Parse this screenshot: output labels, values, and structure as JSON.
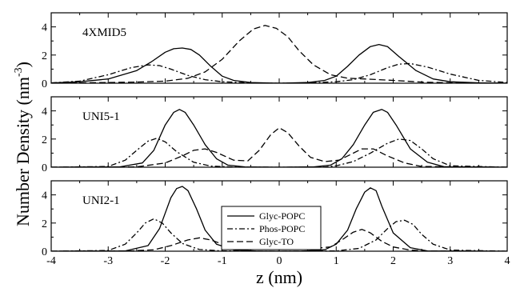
{
  "chart_data": {
    "type": "line",
    "xlabel": "z (nm)",
    "ylabel": "Number Density (nm",
    "ylabel_sup": "-3",
    "ylabel_close": ")",
    "xlim": [
      -4,
      4
    ],
    "ylim": [
      0,
      5
    ],
    "xticks": [
      -4,
      -3,
      -2,
      -1,
      0,
      1,
      2,
      3,
      4
    ],
    "yticks": [
      0,
      2,
      4
    ],
    "legend": {
      "placement": "inside bottom panel, center",
      "entries": [
        {
          "name": "Glyc-POPC",
          "style": "solid"
        },
        {
          "name": "Phos-POPC",
          "style": "dashdot"
        },
        {
          "name": "Glyc-TO",
          "style": "dashed"
        }
      ]
    },
    "panels": [
      {
        "label": "4XMID5",
        "series": [
          {
            "name": "Glyc-POPC",
            "style": "solid",
            "x": [
              -4.0,
              -3.5,
              -3.0,
              -2.5,
              -2.25,
              -2.0,
              -1.85,
              -1.7,
              -1.55,
              -1.4,
              -1.2,
              -1.0,
              -0.8,
              -0.5,
              0.0,
              0.5,
              0.8,
              1.0,
              1.2,
              1.4,
              1.6,
              1.75,
              1.9,
              2.1,
              2.4,
              2.7,
              3.0,
              3.5,
              4.0
            ],
            "y": [
              0.02,
              0.1,
              0.3,
              0.9,
              1.5,
              2.2,
              2.45,
              2.5,
              2.4,
              2.0,
              1.2,
              0.5,
              0.2,
              0.05,
              0.0,
              0.05,
              0.2,
              0.5,
              1.2,
              2.0,
              2.6,
              2.75,
              2.6,
              1.9,
              0.9,
              0.3,
              0.1,
              0.03,
              0.0
            ]
          },
          {
            "name": "Phos-POPC",
            "style": "dashdot",
            "x": [
              -4.0,
              -3.5,
              -3.0,
              -2.6,
              -2.3,
              -2.1,
              -1.9,
              -1.6,
              -1.3,
              -1.0,
              -0.5,
              0.0,
              0.5,
              1.0,
              1.3,
              1.6,
              1.9,
              2.1,
              2.3,
              2.6,
              3.0,
              3.5,
              4.0
            ],
            "y": [
              0.02,
              0.15,
              0.6,
              1.1,
              1.3,
              1.25,
              1.0,
              0.55,
              0.25,
              0.1,
              0.02,
              0.0,
              0.02,
              0.1,
              0.25,
              0.6,
              1.1,
              1.35,
              1.4,
              1.15,
              0.65,
              0.2,
              0.05
            ]
          },
          {
            "name": "Glyc-TO",
            "style": "dashed",
            "x": [
              -4.0,
              -3.5,
              -3.0,
              -2.5,
              -2.0,
              -1.6,
              -1.3,
              -1.0,
              -0.7,
              -0.45,
              -0.25,
              -0.05,
              0.15,
              0.35,
              0.6,
              0.9,
              1.2,
              1.5,
              2.0,
              2.5,
              3.0,
              4.0
            ],
            "y": [
              0.0,
              0.02,
              0.05,
              0.08,
              0.15,
              0.35,
              0.8,
              1.7,
              3.0,
              3.85,
              4.1,
              3.9,
              3.3,
              2.3,
              1.3,
              0.6,
              0.35,
              0.3,
              0.2,
              0.08,
              0.03,
              0.0
            ]
          }
        ]
      },
      {
        "label": "UNI5-1",
        "series": [
          {
            "name": "Glyc-POPC",
            "style": "solid",
            "x": [
              -4.0,
              -2.8,
              -2.4,
              -2.2,
              -2.0,
              -1.85,
              -1.75,
              -1.65,
              -1.5,
              -1.3,
              -1.1,
              -0.9,
              -0.6,
              0.0,
              0.6,
              0.9,
              1.1,
              1.3,
              1.5,
              1.65,
              1.8,
              1.9,
              2.05,
              2.3,
              2.6,
              2.9,
              4.0
            ],
            "y": [
              0.0,
              0.02,
              0.3,
              1.2,
              3.0,
              3.9,
              4.1,
              3.9,
              3.0,
              1.6,
              0.6,
              0.15,
              0.02,
              0.0,
              0.02,
              0.15,
              0.6,
              1.6,
              3.0,
              3.9,
              4.1,
              3.9,
              3.0,
              1.3,
              0.35,
              0.03,
              0.0
            ]
          },
          {
            "name": "Phos-POPC",
            "style": "dashdot",
            "x": [
              -4.0,
              -3.0,
              -2.7,
              -2.5,
              -2.3,
              -2.15,
              -2.0,
              -1.8,
              -1.5,
              -1.2,
              -0.8,
              0.0,
              0.8,
              1.0,
              1.3,
              1.6,
              1.9,
              2.1,
              2.3,
              2.5,
              2.7,
              3.0,
              4.0
            ],
            "y": [
              0.0,
              0.05,
              0.5,
              1.2,
              1.85,
              2.05,
              1.8,
              1.1,
              0.35,
              0.08,
              0.01,
              0.0,
              0.01,
              0.1,
              0.4,
              1.0,
              1.7,
              2.0,
              1.9,
              1.3,
              0.6,
              0.1,
              0.0
            ]
          },
          {
            "name": "Glyc-TO",
            "style": "dashed",
            "x": [
              -4.0,
              -2.5,
              -2.0,
              -1.7,
              -1.5,
              -1.3,
              -1.1,
              -0.8,
              -0.55,
              -0.35,
              -0.15,
              0.0,
              0.15,
              0.35,
              0.55,
              0.8,
              1.05,
              1.25,
              1.45,
              1.65,
              1.9,
              2.2,
              2.5,
              4.0
            ],
            "y": [
              0.0,
              0.02,
              0.3,
              0.8,
              1.2,
              1.3,
              1.05,
              0.5,
              0.45,
              1.2,
              2.3,
              2.8,
              2.45,
              1.5,
              0.7,
              0.4,
              0.5,
              0.9,
              1.3,
              1.3,
              0.8,
              0.3,
              0.05,
              0.0
            ]
          }
        ]
      },
      {
        "label": "UNI2-1",
        "series": [
          {
            "name": "Glyc-POPC",
            "style": "solid",
            "x": [
              -4.0,
              -2.7,
              -2.3,
              -2.1,
              -1.9,
              -1.8,
              -1.7,
              -1.6,
              -1.45,
              -1.3,
              -1.1,
              -0.8,
              -0.4,
              0.0,
              0.4,
              0.8,
              1.0,
              1.2,
              1.35,
              1.5,
              1.6,
              1.7,
              1.8,
              2.0,
              2.3,
              2.6,
              4.0
            ],
            "y": [
              0.0,
              0.02,
              0.4,
              1.6,
              3.8,
              4.45,
              4.6,
              4.3,
              3.0,
              1.5,
              0.5,
              0.1,
              0.01,
              0.0,
              0.01,
              0.1,
              0.5,
              1.5,
              3.0,
              4.2,
              4.5,
              4.3,
              3.2,
              1.3,
              0.25,
              0.02,
              0.0
            ]
          },
          {
            "name": "Phos-POPC",
            "style": "dashdot",
            "x": [
              -4.0,
              -3.0,
              -2.7,
              -2.5,
              -2.35,
              -2.2,
              -2.05,
              -1.9,
              -1.7,
              -1.4,
              -1.0,
              0.0,
              1.0,
              1.4,
              1.7,
              1.9,
              2.05,
              2.2,
              2.35,
              2.5,
              2.7,
              3.0,
              4.0
            ],
            "y": [
              0.0,
              0.05,
              0.5,
              1.3,
              2.0,
              2.3,
              2.0,
              1.3,
              0.55,
              0.12,
              0.02,
              0.0,
              0.02,
              0.2,
              0.8,
              1.6,
              2.1,
              2.2,
              1.9,
              1.2,
              0.5,
              0.08,
              0.0
            ]
          },
          {
            "name": "Glyc-TO",
            "style": "dashed",
            "x": [
              -4.0,
              -2.6,
              -2.2,
              -1.9,
              -1.6,
              -1.4,
              -1.2,
              -0.9,
              -0.6,
              -0.3,
              0.0,
              0.3,
              0.6,
              0.9,
              1.1,
              1.3,
              1.45,
              1.6,
              1.8,
              2.0,
              2.3,
              2.6,
              4.0
            ],
            "y": [
              0.0,
              0.02,
              0.1,
              0.4,
              0.8,
              0.95,
              0.8,
              0.35,
              0.25,
              0.45,
              0.6,
              0.45,
              0.2,
              0.3,
              0.8,
              1.35,
              1.55,
              1.3,
              0.7,
              0.3,
              0.08,
              0.01,
              0.0
            ]
          }
        ]
      }
    ]
  }
}
